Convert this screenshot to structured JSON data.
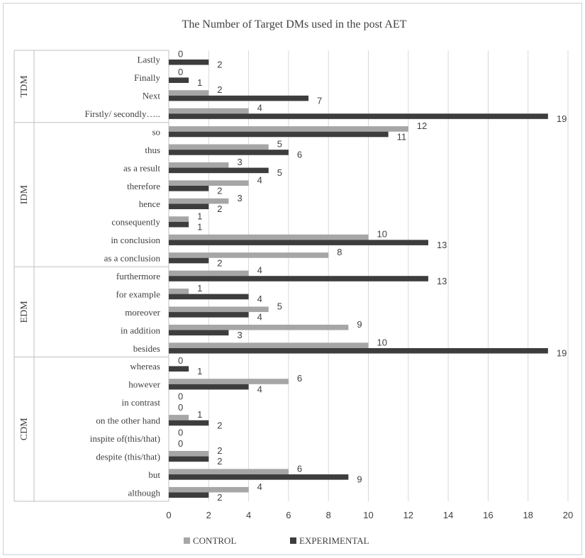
{
  "chart_data": {
    "type": "bar",
    "orientation": "horizontal",
    "title": "The Number of Target DMs used in the post AET",
    "xlabel": "",
    "ylabel": "",
    "xlim": [
      0,
      20
    ],
    "x_ticks": [
      0,
      2,
      4,
      6,
      8,
      10,
      12,
      14,
      16,
      18,
      20
    ],
    "grid": "vertical",
    "legend_position": "bottom",
    "colors": {
      "CONTROL": "#a6a6a6",
      "EXPERIMENTAL": "#3d3d3d"
    },
    "groups": [
      {
        "name": "TDM",
        "categories": [
          "Lastly",
          "Finally",
          "Next",
          "Firstly/ secondly….."
        ]
      },
      {
        "name": "IDM",
        "categories": [
          "so",
          "thus",
          "as a result",
          "therefore",
          "hence",
          "consequently",
          "in conclusion",
          "as a conclusion"
        ]
      },
      {
        "name": "EDM",
        "categories": [
          "furthermore",
          "for example",
          "moreover",
          "in addition",
          "besides"
        ]
      },
      {
        "name": "CDM",
        "categories": [
          "whereas",
          "however",
          "in contrast",
          "on the other hand",
          "inspite of(this/that)",
          "despite (this/that)",
          "but",
          "although"
        ]
      }
    ],
    "categories": [
      "Lastly",
      "Finally",
      "Next",
      "Firstly/ secondly…..",
      "so",
      "thus",
      "as a result",
      "therefore",
      "hence",
      "consequently",
      "in conclusion",
      "as a conclusion",
      "furthermore",
      "for example",
      "moreover",
      "in addition",
      "besides",
      "whereas",
      "however",
      "in contrast",
      "on the other hand",
      "inspite of(this/that)",
      "despite (this/that)",
      "but",
      "although"
    ],
    "series": [
      {
        "name": "CONTROL",
        "values": [
          0,
          0,
          2,
          4,
          12,
          5,
          3,
          4,
          3,
          1,
          10,
          8,
          4,
          1,
          5,
          9,
          10,
          0,
          6,
          0,
          1,
          0,
          2,
          6,
          4
        ]
      },
      {
        "name": "EXPERIMENTAL",
        "values": [
          2,
          1,
          7,
          19,
          11,
          6,
          5,
          2,
          2,
          1,
          13,
          2,
          13,
          4,
          4,
          3,
          19,
          1,
          4,
          0,
          2,
          0,
          2,
          9,
          2
        ]
      }
    ]
  }
}
